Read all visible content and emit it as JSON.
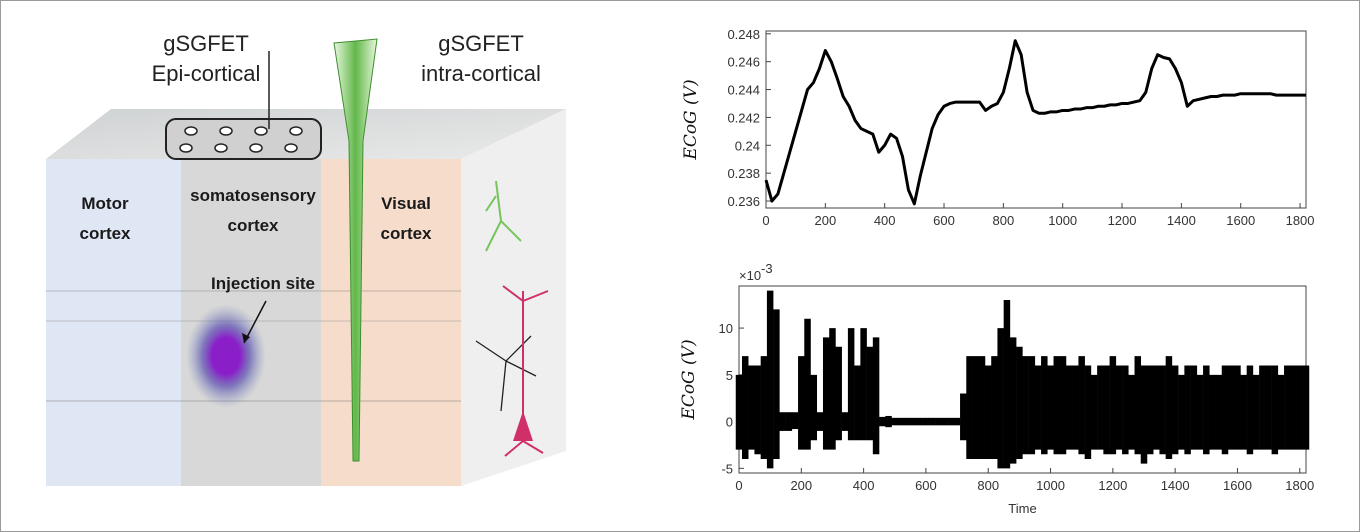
{
  "diagram": {
    "labels": {
      "epi": [
        "gSGFET",
        "Epi-cortical"
      ],
      "intra": [
        "gSGFET",
        "intra-cortical"
      ],
      "motor": [
        "Motor",
        "cortex"
      ],
      "somato": [
        "somatosensory",
        "cortex"
      ],
      "visual": [
        "Visual",
        "cortex"
      ],
      "injection": "Injection site"
    }
  },
  "chart_data": [
    {
      "type": "line",
      "y_label": "ECoG (V)",
      "color": "#000000",
      "x": [
        0,
        20,
        40,
        60,
        80,
        100,
        120,
        140,
        160,
        180,
        200,
        220,
        240,
        260,
        280,
        300,
        320,
        340,
        360,
        380,
        400,
        420,
        440,
        460,
        480,
        500,
        520,
        540,
        560,
        580,
        600,
        620,
        640,
        660,
        680,
        700,
        720,
        740,
        760,
        780,
        800,
        820,
        840,
        860,
        880,
        900,
        920,
        940,
        960,
        980,
        1000,
        1020,
        1040,
        1060,
        1080,
        1100,
        1120,
        1140,
        1160,
        1180,
        1200,
        1220,
        1240,
        1260,
        1280,
        1300,
        1320,
        1340,
        1360,
        1380,
        1400,
        1420,
        1440,
        1460,
        1480,
        1500,
        1520,
        1540,
        1560,
        1580,
        1600,
        1620,
        1640,
        1660,
        1680,
        1700,
        1720,
        1740,
        1760,
        1780,
        1800,
        1820
      ],
      "values": [
        0.2375,
        0.236,
        0.2365,
        0.238,
        0.2395,
        0.241,
        0.2425,
        0.244,
        0.2445,
        0.2455,
        0.2468,
        0.246,
        0.2448,
        0.2435,
        0.2428,
        0.2418,
        0.2412,
        0.241,
        0.2408,
        0.2395,
        0.24,
        0.2408,
        0.2405,
        0.2392,
        0.2368,
        0.2358,
        0.2378,
        0.2395,
        0.2412,
        0.2422,
        0.2428,
        0.243,
        0.2431,
        0.2431,
        0.2431,
        0.2431,
        0.2431,
        0.2425,
        0.2428,
        0.243,
        0.2438,
        0.2455,
        0.2475,
        0.2465,
        0.2438,
        0.2425,
        0.2423,
        0.2423,
        0.2424,
        0.2424,
        0.2425,
        0.2425,
        0.2426,
        0.2426,
        0.2427,
        0.2427,
        0.2428,
        0.2428,
        0.2429,
        0.2429,
        0.243,
        0.243,
        0.2431,
        0.2432,
        0.2438,
        0.2455,
        0.2465,
        0.2463,
        0.2462,
        0.2455,
        0.2445,
        0.2428,
        0.2432,
        0.2433,
        0.2434,
        0.2435,
        0.2435,
        0.2436,
        0.2436,
        0.2436,
        0.2437,
        0.2437,
        0.2437,
        0.2437,
        0.2437,
        0.2437,
        0.2436,
        0.2436,
        0.2436,
        0.2436,
        0.2436,
        0.2436
      ],
      "xlim": [
        0,
        1820
      ],
      "xticks": [
        0,
        200,
        400,
        600,
        800,
        1000,
        1200,
        1400,
        1600,
        1800
      ],
      "ylim": [
        0.2355,
        0.2482
      ],
      "yticks": [
        0.236,
        0.238,
        0.24,
        0.242,
        0.244,
        0.246,
        0.248
      ]
    },
    {
      "type": "range",
      "y_label": "ECoG (V)",
      "x_label": "Time",
      "y_exponent": {
        "base": "×10",
        "power": "-3"
      },
      "color": "#000000",
      "x": [
        0,
        20,
        40,
        60,
        80,
        100,
        120,
        140,
        160,
        180,
        200,
        220,
        240,
        260,
        280,
        300,
        320,
        340,
        360,
        380,
        400,
        420,
        440,
        460,
        480,
        500,
        520,
        540,
        560,
        580,
        600,
        620,
        640,
        660,
        680,
        700,
        720,
        740,
        760,
        780,
        800,
        820,
        840,
        860,
        880,
        900,
        920,
        940,
        960,
        980,
        1000,
        1020,
        1040,
        1060,
        1080,
        1100,
        1120,
        1140,
        1160,
        1180,
        1200,
        1220,
        1240,
        1260,
        1280,
        1300,
        1320,
        1340,
        1360,
        1380,
        1400,
        1420,
        1440,
        1460,
        1480,
        1500,
        1520,
        1540,
        1560,
        1580,
        1600,
        1620,
        1640,
        1660,
        1680,
        1700,
        1720,
        1740,
        1760,
        1780,
        1800,
        1820
      ],
      "upper": [
        5,
        7,
        6,
        6,
        7,
        14,
        12,
        1,
        1,
        1,
        7,
        11,
        5,
        1,
        9,
        10,
        8,
        1,
        10,
        6,
        10,
        8,
        9,
        0.5,
        0.6,
        0.4,
        0.4,
        0.4,
        0.4,
        0.4,
        0.4,
        0.4,
        0.4,
        0.4,
        0.4,
        0.4,
        3,
        7,
        7,
        7,
        6,
        7,
        10,
        13,
        9,
        8,
        7,
        7,
        6,
        7,
        6,
        7,
        7,
        6,
        6,
        7,
        6,
        5,
        6,
        6,
        7,
        6,
        6,
        5,
        7,
        6,
        6,
        6,
        6,
        7,
        6,
        5,
        6,
        6,
        5,
        6,
        5,
        5,
        6,
        6,
        6,
        5,
        6,
        5,
        6,
        6,
        6,
        5,
        6,
        6,
        6,
        6
      ],
      "lower": [
        -3,
        -4,
        -3,
        -3.5,
        -4,
        -5,
        -4,
        -1,
        -1,
        -0.8,
        -3,
        -3,
        -2,
        -1,
        -3,
        -3,
        -2,
        -1,
        -2,
        -2,
        -2,
        -2,
        -3.5,
        -0.5,
        -0.6,
        -0.4,
        -0.4,
        -0.4,
        -0.4,
        -0.4,
        -0.4,
        -0.4,
        -0.4,
        -0.4,
        -0.4,
        -0.4,
        -2,
        -4,
        -4,
        -4,
        -4,
        -4,
        -5,
        -5,
        -4.5,
        -4,
        -3.5,
        -3.5,
        -3,
        -3.5,
        -3,
        -3.5,
        -3.5,
        -3,
        -3,
        -3.5,
        -4,
        -3,
        -3,
        -3.5,
        -3.5,
        -3,
        -3.5,
        -3,
        -3.5,
        -4.5,
        -3.5,
        -3,
        -3.5,
        -4,
        -3.5,
        -3,
        -3.5,
        -3,
        -3,
        -3.5,
        -3,
        -3,
        -3.5,
        -3,
        -3,
        -3,
        -3.5,
        -3,
        -3,
        -3,
        -3.5,
        -3,
        -3,
        -3,
        -3,
        -3
      ],
      "xlim": [
        0,
        1820
      ],
      "xticks": [
        0,
        200,
        400,
        600,
        800,
        1000,
        1200,
        1400,
        1600,
        1800
      ],
      "ylim": [
        -5.5,
        14.5
      ],
      "yticks": [
        -5,
        0,
        5,
        10
      ]
    }
  ]
}
